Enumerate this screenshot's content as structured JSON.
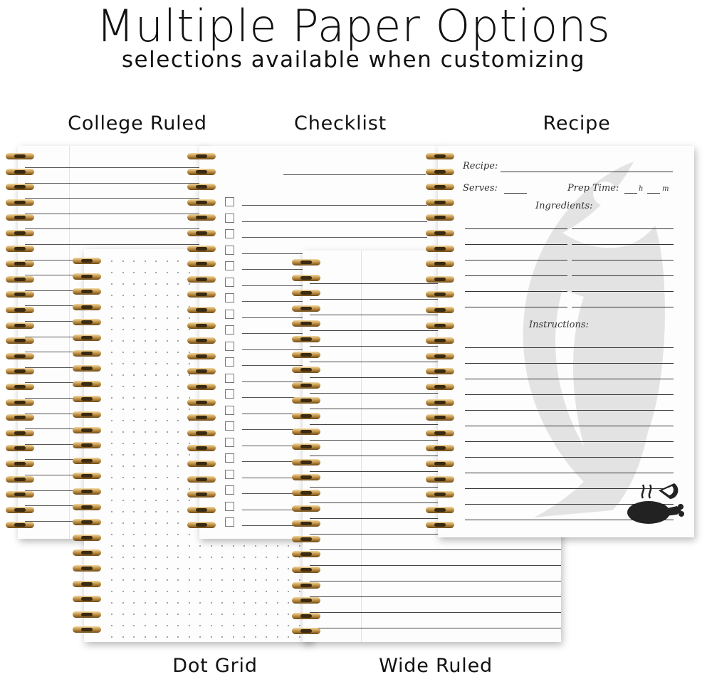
{
  "header": {
    "title": "Multiple Paper Options",
    "subtitle": "selections available when customizing"
  },
  "options": [
    {
      "label": "College Ruled"
    },
    {
      "label": "Checklist"
    },
    {
      "label": "Recipe"
    },
    {
      "label": "Dot Grid"
    },
    {
      "label": "Wide Ruled"
    }
  ],
  "recipe_page": {
    "recipe": "Recipe:",
    "serves": "Serves:",
    "prep_time": "Prep Time:",
    "hours": "h",
    "minutes": "m",
    "ingredients": "Ingredients:",
    "instructions": "Instructions:",
    "watermark_icon": "fish-icon",
    "corner_icon": "roast-chicken-icon"
  },
  "colors": {
    "coil": "#b8873a",
    "line": "#333333",
    "watermark": "#e3e3e3"
  }
}
